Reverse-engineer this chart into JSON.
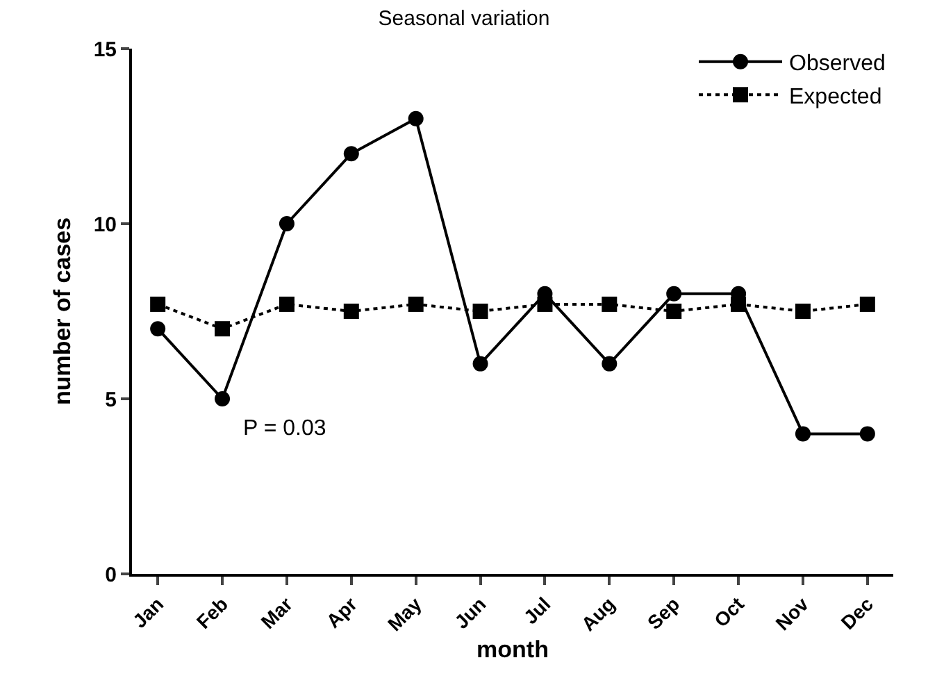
{
  "chart_data": {
    "type": "line",
    "title": "Seasonal variation",
    "xlabel": "month",
    "ylabel": "number of cases",
    "categories": [
      "Jan",
      "Feb",
      "Mar",
      "Apr",
      "May",
      "Jun",
      "Jul",
      "Aug",
      "Sep",
      "Oct",
      "Nov",
      "Dec"
    ],
    "series": [
      {
        "name": "Observed",
        "color": "#000000",
        "marker": "circle",
        "line_style": "solid",
        "values": [
          7,
          5,
          10,
          12,
          13,
          6,
          8,
          6,
          8,
          8,
          4,
          4
        ]
      },
      {
        "name": "Expected",
        "color": "#000000",
        "marker": "square",
        "line_style": "dotted",
        "values": [
          7.7,
          7.0,
          7.7,
          7.5,
          7.7,
          7.5,
          7.7,
          7.7,
          7.5,
          7.7,
          7.5,
          7.7
        ]
      }
    ],
    "ylim": [
      0,
      15
    ],
    "yticks": [
      0,
      5,
      10,
      15
    ],
    "legend": "top right",
    "annotations": [
      "P = 0.03"
    ]
  }
}
